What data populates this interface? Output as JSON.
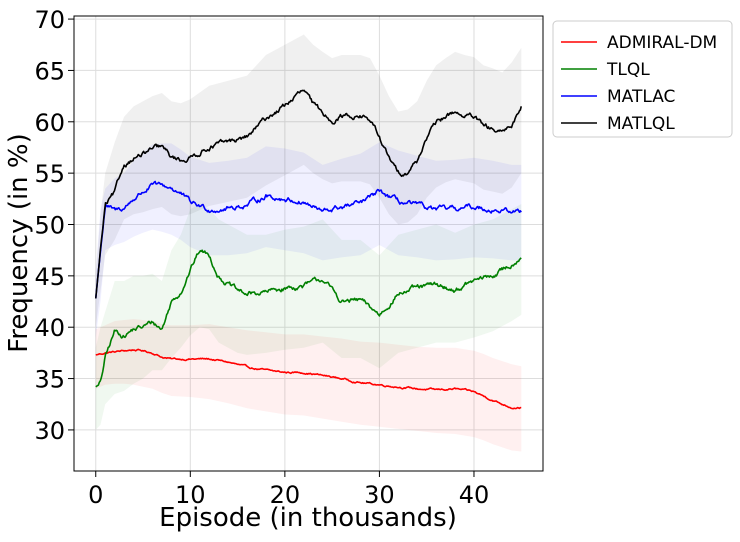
{
  "chart_data": {
    "type": "line",
    "title": "",
    "xlabel": "Episode (in thousands)",
    "ylabel": "Frequency (in %)",
    "xlim": [
      -2.3,
      47.3
    ],
    "ylim": [
      26,
      70.3
    ],
    "xticks": [
      0,
      10,
      20,
      30,
      40
    ],
    "yticks": [
      30,
      35,
      40,
      45,
      50,
      55,
      60,
      65,
      70
    ],
    "grid": true,
    "legend_position": "outside upper-right",
    "series": [
      {
        "name": "ADMIRAL-DM",
        "color": "#ff0000",
        "x": [
          0,
          1,
          2,
          3,
          4,
          5,
          6,
          7,
          8,
          10,
          12,
          14,
          16,
          18,
          20,
          22,
          24,
          26,
          28,
          30,
          32,
          34,
          36,
          38,
          40,
          41,
          42,
          43,
          44,
          45
        ],
        "y": [
          37.3,
          37.5,
          37.6,
          37.7,
          37.8,
          37.7,
          37.5,
          37.1,
          36.9,
          36.9,
          36.9,
          36.6,
          36.1,
          35.8,
          35.6,
          35.6,
          35.3,
          35.0,
          34.6,
          34.4,
          34.2,
          34.0,
          33.9,
          34.0,
          33.7,
          33.3,
          32.9,
          32.5,
          32.2,
          32.2
        ],
        "band_lower": [
          34.0,
          34.4,
          34.5,
          34.5,
          34.4,
          34.2,
          34.0,
          33.6,
          33.3,
          33.2,
          33.0,
          32.6,
          32.1,
          31.8,
          31.5,
          31.4,
          31.1,
          30.8,
          30.5,
          30.3,
          30.1,
          29.9,
          29.7,
          29.6,
          29.3,
          29.0,
          28.6,
          28.3,
          28.0,
          27.9
        ],
        "band_upper": [
          39.8,
          40.2,
          40.6,
          40.7,
          40.8,
          40.7,
          40.6,
          40.3,
          40.2,
          40.2,
          40.3,
          40.0,
          39.7,
          39.5,
          39.3,
          39.3,
          39.1,
          38.9,
          38.6,
          38.5,
          38.3,
          38.1,
          38.0,
          38.0,
          37.7,
          37.4,
          37.0,
          36.7,
          36.4,
          36.2
        ]
      },
      {
        "name": "TLQL",
        "color": "#008000",
        "x": [
          0,
          0.5,
          1,
          2,
          3,
          4,
          5,
          6,
          7,
          8,
          9,
          10,
          11,
          12,
          13,
          14,
          15,
          16,
          18,
          20,
          22,
          24,
          26,
          28,
          30,
          32,
          34,
          36,
          38,
          40,
          42,
          44,
          45
        ],
        "y": [
          34.2,
          34.5,
          37.0,
          39.6,
          39.2,
          39.8,
          40.0,
          40.5,
          39.8,
          42.5,
          43.5,
          45.6,
          47.5,
          47.0,
          45.0,
          44.2,
          43.5,
          43.2,
          43.4,
          43.8,
          44.0,
          44.7,
          42.5,
          42.6,
          41.2,
          43.3,
          43.8,
          44.1,
          43.6,
          44.5,
          45.0,
          46.1,
          47.0
        ],
        "band_lower": [
          30.0,
          30.5,
          32.5,
          33.5,
          33.8,
          34.5,
          35.0,
          35.8,
          35.8,
          37.0,
          38.0,
          39.2,
          40.0,
          39.8,
          38.5,
          38.0,
          37.5,
          37.3,
          37.5,
          37.8,
          38.0,
          38.5,
          37.0,
          37.0,
          36.0,
          37.5,
          38.0,
          38.5,
          38.5,
          39.0,
          39.6,
          40.6,
          41.2
        ],
        "band_upper": [
          38.0,
          40.0,
          41.5,
          44.5,
          44.5,
          45.0,
          45.0,
          45.2,
          44.5,
          47.5,
          49.0,
          51.5,
          52.0,
          51.5,
          50.5,
          50.0,
          49.5,
          49.0,
          49.0,
          49.5,
          49.8,
          50.5,
          48.5,
          48.5,
          47.0,
          49.0,
          49.5,
          50.0,
          49.2,
          50.0,
          50.5,
          51.5,
          52.0
        ]
      },
      {
        "name": "MATLAC",
        "color": "#0000ff",
        "x": [
          0,
          0.5,
          1,
          2,
          3,
          4,
          5,
          6,
          7,
          8,
          9,
          10,
          12,
          14,
          16,
          18,
          20,
          22,
          24,
          26,
          28,
          30,
          32,
          34,
          36,
          38,
          40,
          42,
          44,
          45
        ],
        "y": [
          42.8,
          47.5,
          51.8,
          51.3,
          51.6,
          52.5,
          53.2,
          53.8,
          53.7,
          53.6,
          53.0,
          52.1,
          51.5,
          51.6,
          51.9,
          52.8,
          52.5,
          52.2,
          51.2,
          51.7,
          52.0,
          53.2,
          52.2,
          51.8,
          51.4,
          51.5,
          51.7,
          51.5,
          51.2,
          51.3
        ],
        "band_lower": [
          39.0,
          42.5,
          47.5,
          48.0,
          48.3,
          48.8,
          49.2,
          49.5,
          49.3,
          49.0,
          48.5,
          47.8,
          47.0,
          47.0,
          47.2,
          47.8,
          47.5,
          47.2,
          46.5,
          46.8,
          47.0,
          48.0,
          47.0,
          46.8,
          46.5,
          46.6,
          46.8,
          46.7,
          46.5,
          46.5
        ],
        "band_upper": [
          45.5,
          51.5,
          53.5,
          54.5,
          55.0,
          56.2,
          57.0,
          57.8,
          57.9,
          57.9,
          57.3,
          56.6,
          56.0,
          56.2,
          56.5,
          57.6,
          57.4,
          57.0,
          55.8,
          56.4,
          56.9,
          58.0,
          57.2,
          56.7,
          56.2,
          56.3,
          56.5,
          56.2,
          55.8,
          55.8
        ]
      },
      {
        "name": "MATLQL",
        "color": "#000000",
        "x": [
          0,
          0.5,
          1,
          2,
          3,
          4,
          5,
          6,
          7,
          8,
          9,
          10,
          12,
          14,
          16,
          18,
          20,
          21,
          22,
          23,
          24,
          25,
          26,
          28,
          29,
          30,
          31,
          32,
          33,
          34,
          35,
          36,
          37,
          38,
          39,
          40,
          41,
          42,
          43,
          44,
          45
        ],
        "y": [
          42.8,
          47.5,
          51.8,
          53.0,
          55.8,
          56.5,
          56.8,
          57.3,
          57.5,
          56.5,
          56.3,
          56.5,
          57.6,
          58.0,
          58.5,
          60.3,
          61.6,
          62.4,
          63.0,
          61.6,
          60.8,
          60.2,
          60.6,
          60.6,
          60.2,
          58.5,
          56.4,
          55.0,
          55.2,
          56.2,
          58.5,
          59.8,
          60.5,
          61.0,
          60.6,
          60.4,
          59.5,
          59.2,
          58.8,
          59.7,
          61.5
        ],
        "band_lower": [
          40.0,
          43.5,
          47.0,
          48.5,
          50.5,
          51.0,
          51.2,
          51.5,
          51.7,
          51.0,
          50.8,
          51.0,
          51.8,
          52.2,
          52.6,
          53.8,
          54.8,
          55.3,
          55.8,
          55.0,
          54.4,
          54.0,
          54.2,
          54.2,
          53.9,
          52.6,
          51.0,
          50.0,
          50.2,
          51.0,
          52.6,
          53.6,
          54.1,
          54.4,
          54.2,
          54.0,
          53.4,
          53.2,
          53.0,
          53.6,
          55.0
        ],
        "band_upper": [
          45.0,
          51.0,
          55.0,
          58.0,
          60.5,
          61.5,
          62.0,
          62.5,
          62.8,
          62.0,
          61.8,
          62.2,
          63.5,
          64.0,
          64.5,
          66.5,
          67.5,
          68.0,
          68.5,
          67.5,
          66.8,
          66.2,
          66.5,
          66.5,
          66.2,
          64.5,
          62.5,
          61.0,
          61.2,
          62.0,
          64.0,
          65.5,
          66.2,
          66.8,
          66.5,
          66.3,
          65.5,
          65.2,
          64.8,
          65.8,
          67.2
        ]
      }
    ]
  }
}
